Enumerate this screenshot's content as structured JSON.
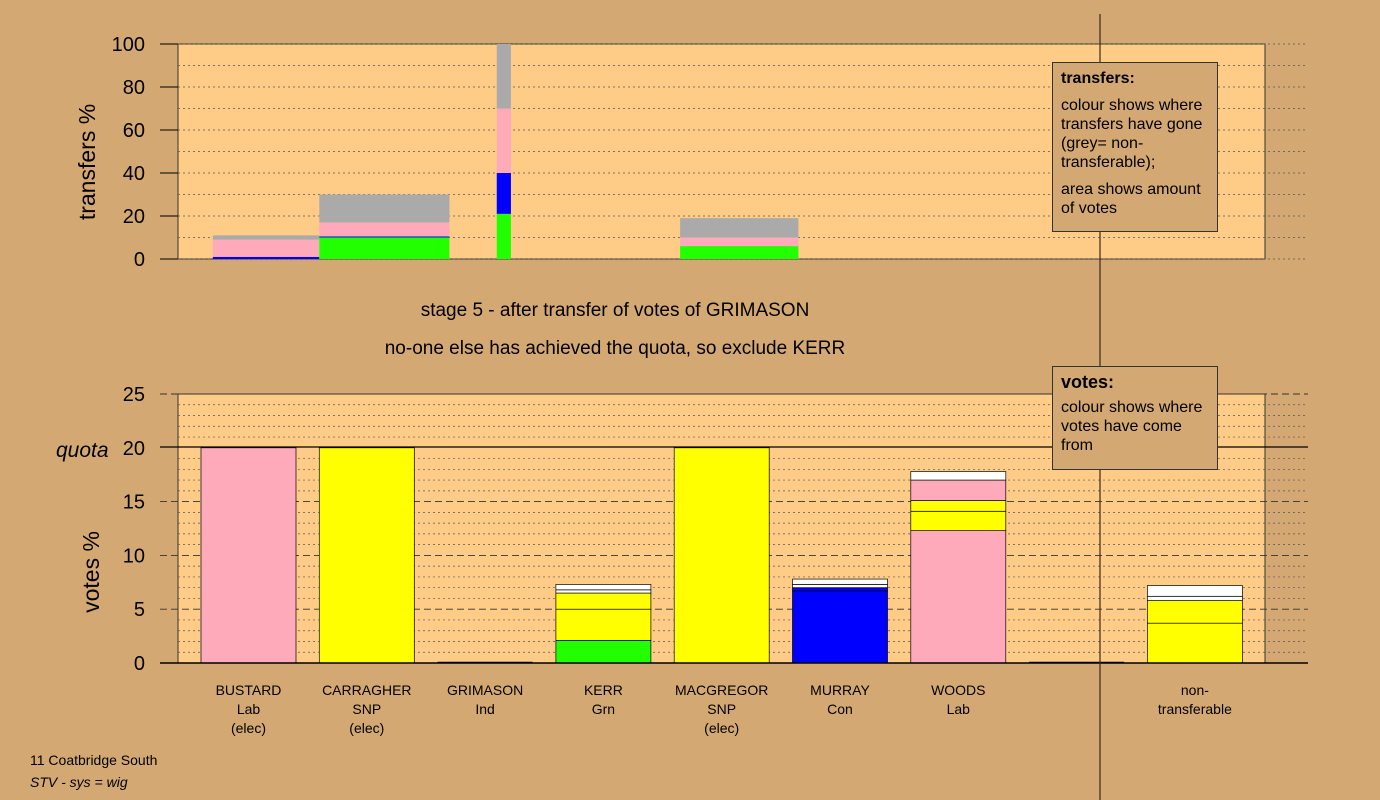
{
  "titles": {
    "stage_line": "stage 5 - after transfer of votes of GRIMASON",
    "status_line": "no-one else has achieved the quota, so exclude KERR"
  },
  "footer": {
    "line1": "11 Coatbridge South",
    "line2": "STV - sys = wig"
  },
  "transfers_box": {
    "title": "transfers:",
    "text1": "colour shows where transfers have gone (grey= non-transferable);",
    "text2": "area shows amount of votes"
  },
  "votes_box": {
    "title": "votes:",
    "text1": "colour shows where votes have come from"
  },
  "colors": {
    "background": "#d4a872",
    "plot_bg": "#ffcc88",
    "lab": "#ffaabb",
    "snp": "#ffff00",
    "grn": "#22ff00",
    "con": "#0000ff",
    "nontransferable": "#aaaaaa",
    "other": "#ffffff"
  },
  "candidates": [
    {
      "name": "BUSTARD",
      "party": "Lab",
      "status": "(elec)"
    },
    {
      "name": "CARRAGHER",
      "party": "SNP",
      "status": "(elec)"
    },
    {
      "name": "GRIMASON",
      "party": "Ind",
      "status": ""
    },
    {
      "name": "KERR",
      "party": "Grn",
      "status": ""
    },
    {
      "name": "MACGREGOR",
      "party": "SNP",
      "status": "(elec)"
    },
    {
      "name": "MURRAY",
      "party": "Con",
      "status": ""
    },
    {
      "name": "WOODS",
      "party": "Lab",
      "status": ""
    },
    {
      "name": "",
      "party": "",
      "status": ""
    },
    {
      "name": "non-",
      "party": "transferable",
      "status": ""
    }
  ],
  "chart_data": [
    {
      "type": "bar",
      "ylabel": "transfers %",
      "ylim": [
        0,
        100
      ],
      "yticks": [
        0,
        20,
        40,
        60,
        80,
        100
      ],
      "grid": true,
      "bars": [
        {
          "x0": 0.1,
          "x1": 1.0,
          "segments": [
            {
              "color": "con",
              "value": 1
            },
            {
              "color": "lab",
              "value": 8
            },
            {
              "color": "nontransferable",
              "value": 2
            }
          ]
        },
        {
          "x0": 1.0,
          "x1": 2.1,
          "segments": [
            {
              "color": "grn",
              "value": 10
            },
            {
              "color": "con",
              "value": 0.5
            },
            {
              "color": "lab",
              "value": 6.5
            },
            {
              "color": "nontransferable",
              "value": 13
            }
          ]
        },
        {
          "x0": 2.5,
          "x1": 2.62,
          "segments": [
            {
              "color": "grn",
              "value": 21
            },
            {
              "color": "con",
              "value": 19
            },
            {
              "color": "lab",
              "value": 30
            },
            {
              "color": "nontransferable",
              "value": 30
            }
          ]
        },
        {
          "x0": 4.05,
          "x1": 5.05,
          "segments": [
            {
              "color": "grn",
              "value": 6
            },
            {
              "color": "lab",
              "value": 4
            },
            {
              "color": "nontransferable",
              "value": 9
            }
          ]
        }
      ]
    },
    {
      "type": "bar",
      "ylabel": "votes %",
      "ylim": [
        0,
        25
      ],
      "yticks": [
        0,
        5,
        10,
        15,
        20,
        25
      ],
      "quota": 20,
      "quota_label": "quota",
      "grid": true,
      "categories": [
        "BUSTARD",
        "CARRAGHER",
        "GRIMASON",
        "KERR",
        "MACGREGOR",
        "MURRAY",
        "WOODS",
        "",
        "non-transferable"
      ],
      "stacks": [
        [
          {
            "color": "lab",
            "value": 20
          }
        ],
        [
          {
            "color": "snp",
            "value": 20
          }
        ],
        [],
        [
          {
            "color": "grn",
            "value": 2.1
          },
          {
            "color": "snp",
            "value": 2.9
          },
          {
            "color": "snp",
            "value": 1.5
          },
          {
            "color": "other",
            "value": 0.3
          },
          {
            "color": "other",
            "value": 0.5
          }
        ],
        [
          {
            "color": "snp",
            "value": 20
          }
        ],
        [
          {
            "color": "con",
            "value": 6.7
          },
          {
            "color": "con",
            "value": 0.3
          },
          {
            "color": "other",
            "value": 0.3
          },
          {
            "color": "other",
            "value": 0.5
          }
        ],
        [
          {
            "color": "lab",
            "value": 12.3
          },
          {
            "color": "snp",
            "value": 1.8
          },
          {
            "color": "snp",
            "value": 1
          },
          {
            "color": "lab",
            "value": 1.9
          },
          {
            "color": "other",
            "value": 0.8
          }
        ],
        [],
        [
          {
            "color": "snp",
            "value": 3.7
          },
          {
            "color": "snp",
            "value": 2.1
          },
          {
            "color": "other",
            "value": 0.4
          },
          {
            "color": "other",
            "value": 1
          }
        ]
      ]
    }
  ]
}
